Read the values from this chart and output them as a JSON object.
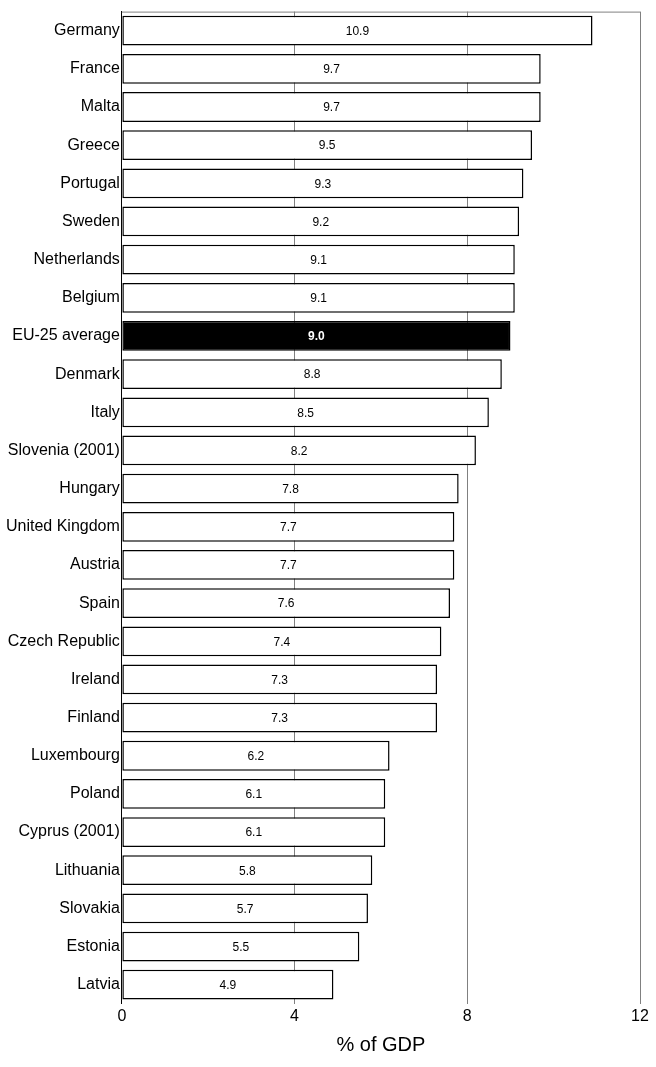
{
  "chart_data": {
    "type": "bar",
    "orientation": "horizontal",
    "xlabel": "% of GDP",
    "categories": [
      "Germany",
      "France",
      "Malta",
      "Greece",
      "Portugal",
      "Sweden",
      "Netherlands",
      "Belgium",
      "EU-25 average",
      "Denmark",
      "Italy",
      "Slovenia (2001)",
      "Hungary",
      "United Kingdom",
      "Austria",
      "Spain",
      "Czech Republic",
      "Ireland",
      "Finland",
      "Luxembourg",
      "Poland",
      "Cyprus (2001)",
      "Lithuania",
      "Slovakia",
      "Estonia",
      "Latvia"
    ],
    "values": [
      10.9,
      9.7,
      9.7,
      9.5,
      9.3,
      9.2,
      9.1,
      9.1,
      9.0,
      8.8,
      8.5,
      8.2,
      7.8,
      7.7,
      7.7,
      7.6,
      7.4,
      7.3,
      7.3,
      6.2,
      6.1,
      6.1,
      5.8,
      5.7,
      5.5,
      4.9
    ],
    "colors": [
      "#ffffff",
      "#ffffff",
      "#ffffff",
      "#ffffff",
      "#ffffff",
      "#ffffff",
      "#ffffff",
      "#ffffff",
      "#000000",
      "#ffffff",
      "#ffffff",
      "#ffffff",
      "#ffffff",
      "#ffffff",
      "#ffffff",
      "#ffffff",
      "#ffffff",
      "#ffffff",
      "#ffffff",
      "#ffffff",
      "#ffffff",
      "#ffffff",
      "#ffffff",
      "#ffffff",
      "#ffffff",
      "#ffffff"
    ],
    "value_labels": [
      "10.9",
      "9.7",
      "9.7",
      "9.5",
      "9.3",
      "9.2",
      "9.1",
      "9.1",
      "9.0",
      "8.8",
      "8.5",
      "8.2",
      "7.8",
      "7.7",
      "7.7",
      "7.6",
      "7.4",
      "7.3",
      "7.3",
      "6.2",
      "6.1",
      "6.1",
      "5.8",
      "5.7",
      "5.5",
      "4.9"
    ],
    "xlim": [
      0,
      12
    ],
    "xticks": [
      0,
      4,
      8,
      12
    ],
    "grid": "x"
  }
}
